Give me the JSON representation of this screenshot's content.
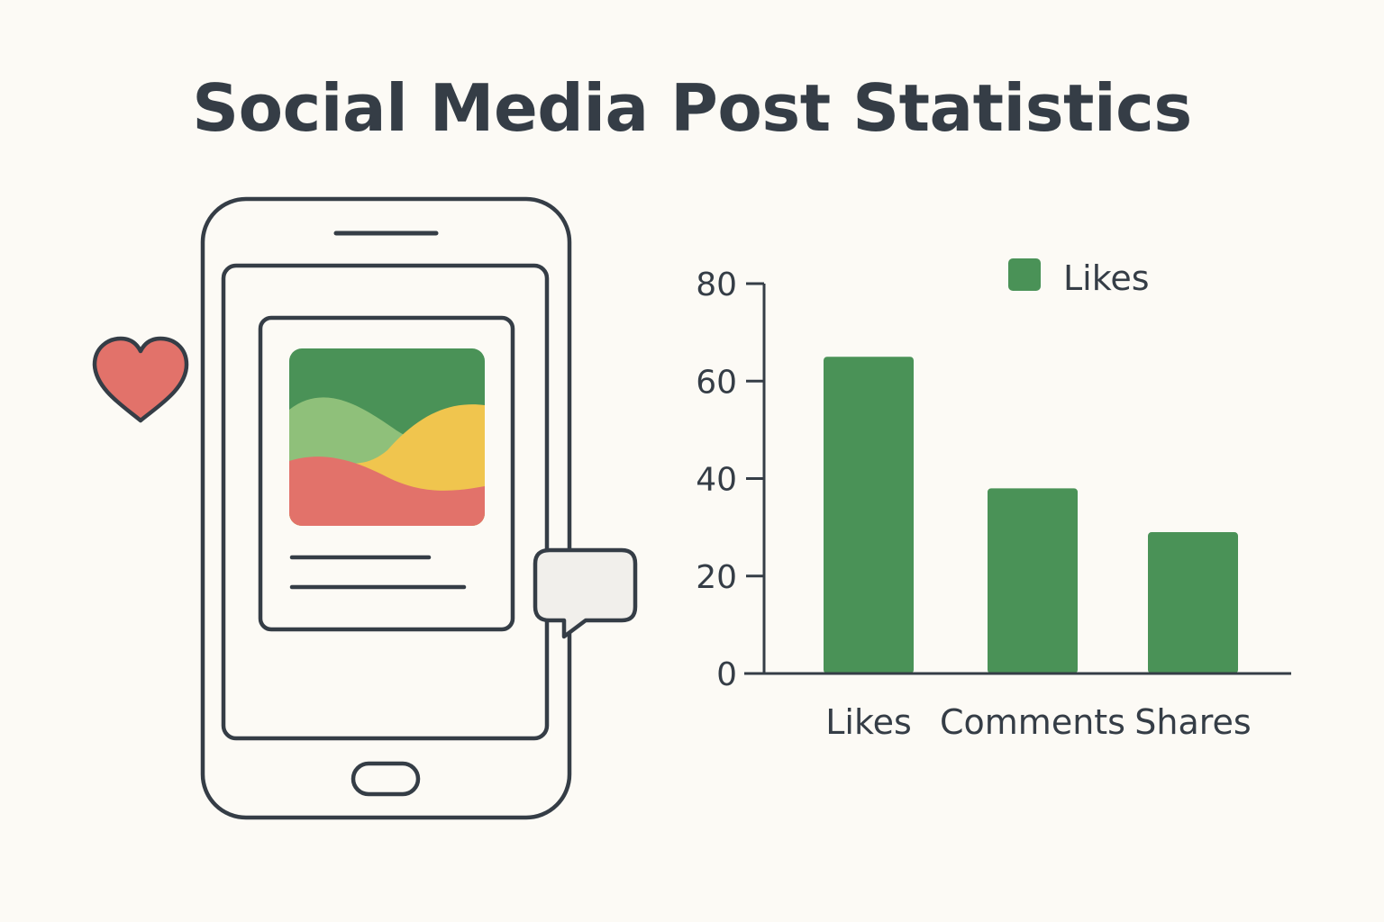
{
  "title": "Social Media Post Statistics",
  "colors": {
    "bar": "#4a9257",
    "heart": "#e2726a",
    "ink": "#353d46",
    "background": "#fcfaf5",
    "wave_dark": "#4a9257",
    "wave_light": "#8fc07a",
    "wave_yellow": "#f0c54e",
    "wave_red": "#e2726a",
    "bubble": "#f1efeb"
  },
  "icons": [
    "smartphone-icon",
    "heart-icon",
    "comment-bubble-icon",
    "post-image-icon"
  ],
  "chart_data": {
    "type": "bar",
    "categories": [
      "Likes",
      "Comments",
      "Shares"
    ],
    "series": [
      {
        "name": "Likes",
        "values": [
          65,
          38,
          29
        ]
      }
    ],
    "yticks": [
      0,
      20,
      40,
      60,
      80
    ],
    "ylim": [
      0,
      80
    ],
    "legend": {
      "position": "top-right",
      "entries": [
        "Likes"
      ]
    },
    "grid": false
  }
}
